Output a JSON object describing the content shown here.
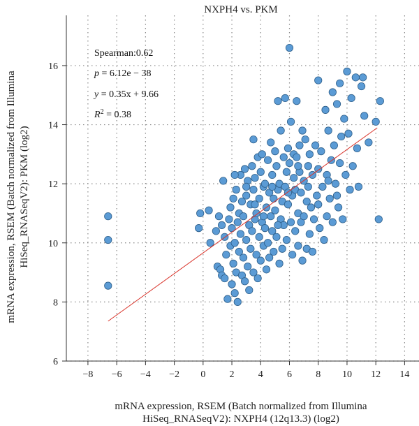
{
  "chart_data": {
    "type": "scatter",
    "title": "NXPH4 vs. PKM",
    "xlabel_lines": [
      "mRNA expression, RSEM (Batch normalized from Illumina",
      "HiSeq_RNASeqV2): NXPH4 (12q13.3) (log2)"
    ],
    "ylabel_lines": [
      "mRNA expression, RSEM (Batch normalized from Illumina",
      "HiSeq_RNASeqV2): PKM (log2)"
    ],
    "xlim": [
      -9.5,
      15
    ],
    "ylim": [
      6,
      17.7
    ],
    "x_ticks": [
      -8,
      -6,
      -4,
      -2,
      0,
      2,
      4,
      6,
      8,
      10,
      12,
      14
    ],
    "y_ticks": [
      6,
      8,
      10,
      12,
      14,
      16
    ],
    "x_tick_labels": [
      "−8",
      "−6",
      "−4",
      "−2",
      "0",
      "2",
      "4",
      "6",
      "8",
      "10",
      "12",
      "14"
    ],
    "y_tick_labels": [
      "6",
      "8",
      "10",
      "12",
      "14",
      "16"
    ],
    "grid": true,
    "marker_color": "#5b9bd5",
    "marker_edge_color": "#2e5f8a",
    "fit_line_color": "#d9342b",
    "stats": {
      "spearman": "Spearman:0.62",
      "p_label": "p",
      "p_value": " = 6.12e − 38",
      "y_label": "y",
      "fit_eq": " = 0.35x + 9.66",
      "r2_label": "R",
      "r2_sup": "2",
      "r2_value": " = 0.38"
    },
    "fit_line": {
      "slope": 0.35,
      "intercept": 9.66,
      "x_range": [
        -6.6,
        12.1
      ]
    },
    "points": [
      [
        -6.6,
        10.9
      ],
      [
        -6.6,
        10.1
      ],
      [
        -6.6,
        8.55
      ],
      [
        -0.3,
        10.5
      ],
      [
        -0.2,
        11.0
      ],
      [
        0.4,
        11.1
      ],
      [
        0.5,
        10.0
      ],
      [
        0.9,
        10.4
      ],
      [
        1.0,
        9.2
      ],
      [
        1.1,
        10.9
      ],
      [
        1.2,
        9.1
      ],
      [
        1.3,
        10.6
      ],
      [
        1.3,
        8.9
      ],
      [
        1.4,
        12.1
      ],
      [
        1.5,
        8.8
      ],
      [
        1.5,
        10.2
      ],
      [
        1.6,
        9.6
      ],
      [
        1.7,
        8.1
      ],
      [
        1.8,
        10.8
      ],
      [
        1.9,
        11.2
      ],
      [
        1.9,
        9.9
      ],
      [
        2.0,
        8.6
      ],
      [
        2.0,
        10.5
      ],
      [
        2.1,
        11.5
      ],
      [
        2.1,
        9.3
      ],
      [
        2.2,
        8.3
      ],
      [
        2.2,
        10.0
      ],
      [
        2.3,
        11.8
      ],
      [
        2.3,
        9.0
      ],
      [
        2.4,
        10.7
      ],
      [
        2.4,
        8.0
      ],
      [
        2.5,
        11.0
      ],
      [
        2.5,
        9.7
      ],
      [
        2.6,
        12.3
      ],
      [
        2.6,
        10.3
      ],
      [
        2.7,
        8.9
      ],
      [
        2.7,
        11.4
      ],
      [
        2.8,
        9.5
      ],
      [
        2.8,
        10.9
      ],
      [
        2.9,
        12.5
      ],
      [
        2.9,
        8.7
      ],
      [
        3.0,
        10.1
      ],
      [
        3.0,
        11.6
      ],
      [
        3.1,
        9.2
      ],
      [
        3.1,
        12.1
      ],
      [
        3.2,
        10.6
      ],
      [
        3.2,
        8.4
      ],
      [
        3.3,
        11.3
      ],
      [
        3.3,
        9.8
      ],
      [
        3.4,
        12.6
      ],
      [
        3.4,
        10.4
      ],
      [
        3.5,
        11.8
      ],
      [
        3.5,
        9.0
      ],
      [
        3.5,
        13.5
      ],
      [
        3.6,
        10.8
      ],
      [
        3.6,
        12.2
      ],
      [
        3.7,
        9.6
      ],
      [
        3.7,
        11.0
      ],
      [
        3.8,
        8.8
      ],
      [
        3.8,
        12.9
      ],
      [
        3.9,
        10.2
      ],
      [
        3.9,
        11.5
      ],
      [
        4.0,
        9.4
      ],
      [
        4.0,
        12.4
      ],
      [
        4.1,
        10.7
      ],
      [
        4.1,
        13.0
      ],
      [
        4.2,
        11.9
      ],
      [
        4.2,
        9.9
      ],
      [
        4.3,
        12.0
      ],
      [
        4.3,
        10.5
      ],
      [
        4.4,
        11.2
      ],
      [
        4.4,
        9.1
      ],
      [
        4.5,
        12.8
      ],
      [
        4.5,
        10.0
      ],
      [
        4.6,
        11.7
      ],
      [
        4.6,
        9.5
      ],
      [
        4.7,
        13.4
      ],
      [
        4.7,
        10.9
      ],
      [
        4.8,
        12.3
      ],
      [
        4.8,
        10.4
      ],
      [
        4.9,
        11.5
      ],
      [
        4.9,
        9.7
      ],
      [
        5.0,
        13.1
      ],
      [
        5.0,
        11.1
      ],
      [
        5.1,
        12.6
      ],
      [
        5.1,
        10.2
      ],
      [
        5.2,
        14.8
      ],
      [
        5.2,
        11.8
      ],
      [
        5.3,
        9.3
      ],
      [
        5.3,
        12.0
      ],
      [
        5.4,
        10.8
      ],
      [
        5.4,
        13.8
      ],
      [
        5.5,
        11.4
      ],
      [
        5.5,
        9.8
      ],
      [
        5.6,
        12.9
      ],
      [
        5.6,
        10.6
      ],
      [
        5.7,
        14.9
      ],
      [
        5.7,
        11.9
      ],
      [
        5.8,
        12.4
      ],
      [
        5.8,
        10.1
      ],
      [
        5.9,
        13.2
      ],
      [
        5.9,
        11.3
      ],
      [
        6.0,
        16.6
      ],
      [
        6.0,
        12.7
      ],
      [
        6.1,
        10.7
      ],
      [
        6.1,
        14.1
      ],
      [
        6.2,
        11.6
      ],
      [
        6.2,
        9.6
      ],
      [
        6.3,
        13.0
      ],
      [
        6.3,
        12.2
      ],
      [
        6.4,
        10.4
      ],
      [
        6.4,
        11.8
      ],
      [
        6.5,
        14.8
      ],
      [
        6.5,
        12.9
      ],
      [
        6.6,
        11.0
      ],
      [
        6.6,
        9.9
      ],
      [
        6.7,
        13.3
      ],
      [
        6.7,
        12.4
      ],
      [
        6.8,
        10.7
      ],
      [
        6.8,
        11.7
      ],
      [
        6.9,
        13.8
      ],
      [
        6.9,
        9.4
      ],
      [
        7.0,
        12.1
      ],
      [
        7.0,
        10.9
      ],
      [
        7.1,
        13.5
      ],
      [
        7.2,
        11.4
      ],
      [
        7.2,
        9.8
      ],
      [
        7.3,
        12.6
      ],
      [
        7.4,
        10.3
      ],
      [
        7.4,
        13.0
      ],
      [
        7.5,
        11.2
      ],
      [
        7.6,
        9.7
      ],
      [
        7.6,
        12.3
      ],
      [
        7.7,
        10.8
      ],
      [
        7.8,
        13.3
      ],
      [
        7.9,
        11.6
      ],
      [
        8.0,
        15.5
      ],
      [
        8.0,
        12.5
      ],
      [
        8.1,
        10.5
      ],
      [
        8.2,
        13.1
      ],
      [
        8.3,
        11.9
      ],
      [
        8.4,
        10.1
      ],
      [
        8.5,
        14.5
      ],
      [
        8.6,
        12.3
      ],
      [
        8.6,
        10.9
      ],
      [
        8.7,
        13.8
      ],
      [
        8.8,
        11.5
      ],
      [
        8.9,
        12.8
      ],
      [
        9.0,
        15.1
      ],
      [
        9.0,
        10.7
      ],
      [
        9.1,
        13.3
      ],
      [
        9.2,
        12.0
      ],
      [
        9.3,
        14.7
      ],
      [
        9.4,
        11.2
      ],
      [
        9.5,
        15.4
      ],
      [
        9.5,
        12.7
      ],
      [
        9.6,
        13.6
      ],
      [
        9.7,
        10.8
      ],
      [
        9.8,
        14.2
      ],
      [
        9.9,
        12.3
      ],
      [
        10.0,
        15.8
      ],
      [
        10.1,
        13.7
      ],
      [
        10.2,
        11.8
      ],
      [
        10.3,
        14.9
      ],
      [
        10.4,
        12.6
      ],
      [
        10.6,
        15.6
      ],
      [
        10.7,
        13.2
      ],
      [
        10.8,
        11.9
      ],
      [
        11.0,
        15.3
      ],
      [
        11.1,
        15.6
      ],
      [
        11.2,
        14.3
      ],
      [
        11.5,
        13.4
      ],
      [
        12.0,
        14.1
      ],
      [
        12.2,
        10.8
      ],
      [
        12.3,
        14.8
      ],
      [
        2.2,
        12.3
      ],
      [
        3.0,
        11.9
      ],
      [
        3.6,
        11.3
      ],
      [
        4.2,
        10.9
      ],
      [
        4.8,
        11.9
      ],
      [
        5.2,
        10.6
      ],
      [
        5.9,
        11.7
      ],
      [
        6.6,
        12.6
      ],
      [
        7.3,
        11.9
      ],
      [
        8.0,
        11.3
      ],
      [
        8.7,
        12.1
      ],
      [
        9.3,
        11.6
      ]
    ]
  }
}
